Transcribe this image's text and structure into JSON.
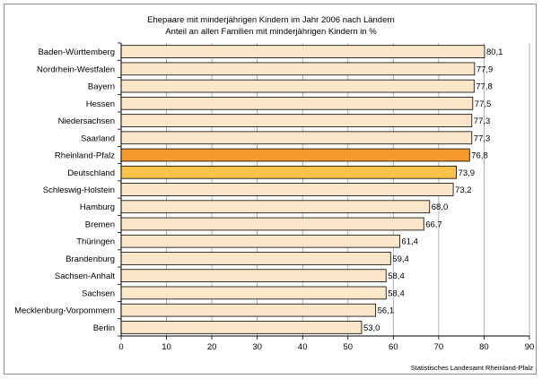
{
  "chart_data": {
    "type": "bar",
    "orientation": "horizontal",
    "title": "Ehepaare mit minderjährigen Kindern im Jahr 2006 nach Ländern",
    "subtitle": "Anteil an allen Familien mit minderjährigen Kindern in %",
    "categories": [
      "Baden-Württemberg",
      "Nordrhein-Westfalen",
      "Bayern",
      "Hessen",
      "Niedersachsen",
      "Saarland",
      "Rheinland-Pfalz",
      "Deutschland",
      "Schleswig-Holstein",
      "Hamburg",
      "Bremen",
      "Thüringen",
      "Brandenburg",
      "Sachsen-Anhalt",
      "Sachsen",
      "Mecklenburg-Vorpommern",
      "Berlin"
    ],
    "values": [
      80.1,
      77.9,
      77.8,
      77.5,
      77.3,
      77.3,
      76.8,
      73.9,
      73.2,
      68.0,
      66.7,
      61.4,
      59.4,
      58.4,
      58.4,
      56.1,
      53.0
    ],
    "value_labels": [
      "80,1",
      "77,9",
      "77,8",
      "77,5",
      "77,3",
      "77,3",
      "76,8",
      "73,9",
      "73,2",
      "68,0",
      "66,7",
      "61,4",
      "59,4",
      "58,4",
      "58,4",
      "56,1",
      "53,0"
    ],
    "xlim": [
      0,
      90
    ],
    "xticks": [
      0,
      10,
      20,
      30,
      40,
      50,
      60,
      70,
      80,
      90
    ],
    "grid": true,
    "colors": {
      "default": "#FCE6C9",
      "highlight_rheinland_pfalz": "#F79A2E",
      "highlight_deutschland": "#F8C24B",
      "bar_border": "#000000",
      "grid": "#a0a0a0"
    },
    "highlight": {
      "Rheinland-Pfalz": "#F79A2E",
      "Deutschland": "#F8C24B"
    },
    "source": "Statistisches Landesamt Rheinland-Pfalz"
  }
}
